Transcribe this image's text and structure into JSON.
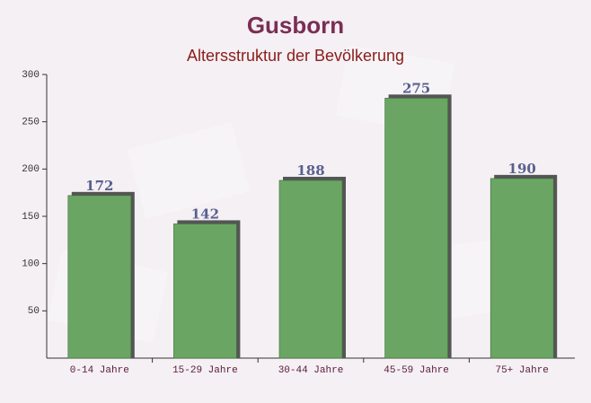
{
  "chart_data": {
    "type": "bar",
    "title": "Gusborn",
    "subtitle": "Altersstruktur der Bevölkerung",
    "categories": [
      "0-14 Jahre",
      "15-29 Jahre",
      "30-44 Jahre",
      "45-59 Jahre",
      "75+ Jahre"
    ],
    "values": [
      172,
      142,
      188,
      275,
      190
    ],
    "color": "#6aa564",
    "ylim": [
      0,
      300
    ],
    "yticks": [
      50,
      100,
      150,
      200,
      250,
      300
    ]
  }
}
